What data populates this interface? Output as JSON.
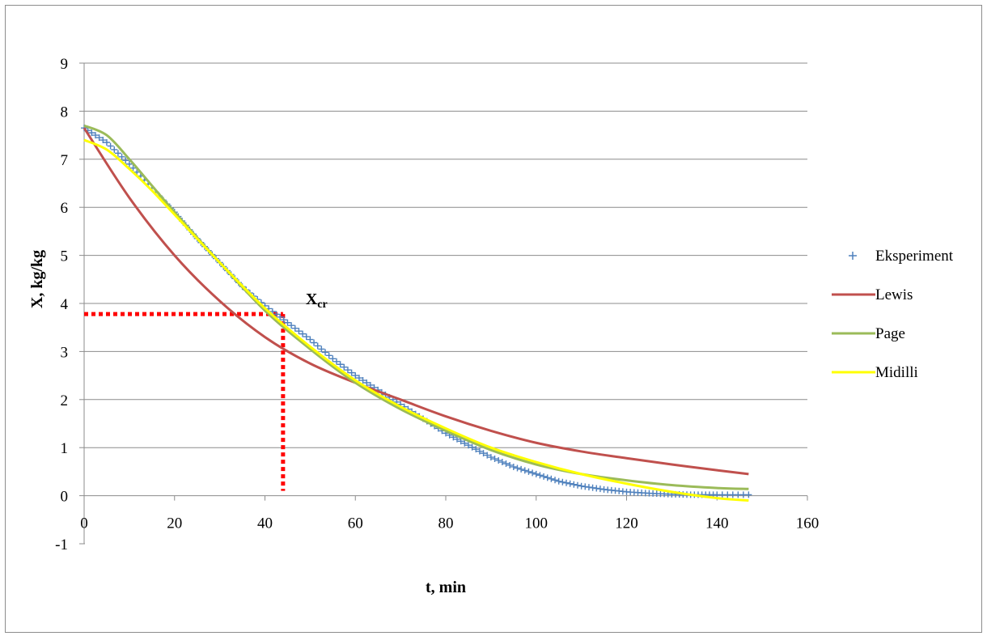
{
  "chart_data": {
    "type": "line",
    "title": "",
    "xlabel": "t, min",
    "ylabel": "X, kg/kg",
    "xlim": [
      0,
      160
    ],
    "ylim": [
      -1,
      9
    ],
    "x_ticks": [
      "0",
      "20",
      "40",
      "60",
      "80",
      "100",
      "120",
      "140",
      "160"
    ],
    "y_ticks": [
      "-1",
      "0",
      "1",
      "2",
      "3",
      "4",
      "5",
      "6",
      "7",
      "8",
      "9"
    ],
    "grid": true,
    "legend_position": "right",
    "annotation": {
      "label": "X",
      "subscript": "cr",
      "t": 44,
      "X": 3.78
    },
    "series": [
      {
        "name": "Eksperiment",
        "kind": "marker",
        "color": "#4f81bd",
        "x": [
          0,
          5,
          10,
          15,
          20,
          25,
          30,
          35,
          40,
          45,
          50,
          55,
          60,
          65,
          70,
          75,
          80,
          85,
          90,
          95,
          100,
          105,
          110,
          115,
          120,
          125,
          130,
          135,
          140,
          147
        ],
        "y": [
          7.65,
          7.35,
          6.9,
          6.4,
          5.9,
          5.35,
          4.85,
          4.35,
          3.95,
          3.6,
          3.25,
          2.85,
          2.5,
          2.2,
          1.9,
          1.6,
          1.3,
          1.05,
          0.8,
          0.6,
          0.45,
          0.3,
          0.2,
          0.13,
          0.08,
          0.05,
          0.03,
          0.02,
          0.02,
          0.02
        ]
      },
      {
        "name": "Lewis",
        "kind": "line",
        "color": "#c0504d",
        "x": [
          0,
          10,
          20,
          30,
          40,
          50,
          60,
          70,
          80,
          90,
          100,
          110,
          120,
          130,
          140,
          147
        ],
        "y": [
          7.65,
          6.2,
          5.0,
          4.05,
          3.3,
          2.75,
          2.35,
          2.0,
          1.65,
          1.35,
          1.1,
          0.92,
          0.78,
          0.65,
          0.53,
          0.45
        ]
      },
      {
        "name": "Page",
        "kind": "line",
        "color": "#9bbb59",
        "x": [
          0,
          5,
          10,
          15,
          20,
          30,
          40,
          50,
          60,
          70,
          80,
          90,
          100,
          110,
          120,
          130,
          140,
          147
        ],
        "y": [
          7.7,
          7.5,
          7.0,
          6.45,
          5.9,
          4.85,
          3.85,
          3.05,
          2.35,
          1.8,
          1.35,
          0.95,
          0.65,
          0.45,
          0.32,
          0.22,
          0.16,
          0.14
        ]
      },
      {
        "name": "Midilli",
        "kind": "line",
        "color": "#ffff00",
        "x": [
          0,
          5,
          10,
          15,
          20,
          30,
          40,
          50,
          60,
          70,
          80,
          90,
          100,
          110,
          120,
          130,
          140,
          147
        ],
        "y": [
          7.4,
          7.2,
          6.8,
          6.35,
          5.85,
          4.85,
          3.9,
          3.1,
          2.4,
          1.85,
          1.4,
          1.0,
          0.7,
          0.45,
          0.25,
          0.08,
          -0.05,
          -0.1
        ]
      }
    ]
  }
}
